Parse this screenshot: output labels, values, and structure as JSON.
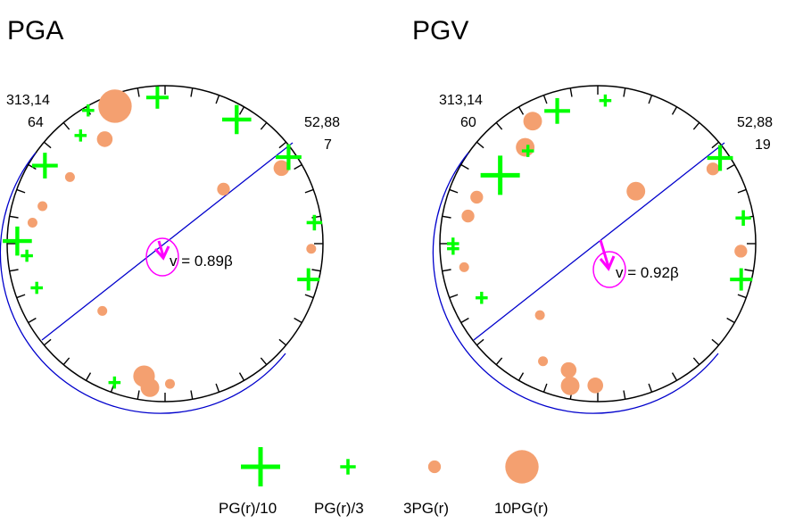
{
  "colors": {
    "plus": "#00ff00",
    "circle": "#f4a070",
    "plane": "#0000cc",
    "rupture": "#ff00ff",
    "outline": "#000000"
  },
  "panels": [
    {
      "title": "PGA",
      "strike_dip_label": "313,14",
      "left_value": "64",
      "right_axis_label": "52,88",
      "right_value": "7",
      "velocity_label": "v = 0.89β",
      "markers": [
        {
          "type": "circle",
          "az": 340,
          "r": 0.97,
          "level": 10
        },
        {
          "type": "circle",
          "az": 330,
          "r": 0.8,
          "level": 4
        },
        {
          "type": "circle",
          "az": 305,
          "r": 0.77,
          "level": 2
        },
        {
          "type": "circle",
          "az": 57,
          "r": 0.92,
          "level": 4
        },
        {
          "type": "circle",
          "az": 47,
          "r": 0.53,
          "level": 3
        },
        {
          "type": "circle",
          "az": 287,
          "r": 0.85,
          "level": 2
        },
        {
          "type": "circle",
          "az": 279,
          "r": 0.89,
          "level": 2
        },
        {
          "type": "circle",
          "az": 92,
          "r": 0.97,
          "level": 2
        },
        {
          "type": "circle",
          "az": 223,
          "r": 0.61,
          "level": 2
        },
        {
          "type": "circle",
          "az": 189,
          "r": 0.89,
          "level": 6
        },
        {
          "type": "circle",
          "az": 186,
          "r": 0.96,
          "level": 5
        },
        {
          "type": "circle",
          "az": 178,
          "r": 0.93,
          "level": 2
        },
        {
          "type": "plus",
          "az": 357,
          "r": 0.97,
          "level": 5
        },
        {
          "type": "plus",
          "az": 30,
          "r": 0.95,
          "level": 7
        },
        {
          "type": "plus",
          "az": 55,
          "r": 1.0,
          "level": 6
        },
        {
          "type": "plus",
          "az": 303,
          "r": 0.95,
          "level": 6
        },
        {
          "type": "plus",
          "az": 322,
          "r": 0.91,
          "level": 2
        },
        {
          "type": "plus",
          "az": 330,
          "r": 1.02,
          "level": 2
        },
        {
          "type": "plus",
          "az": 271,
          "r": 0.98,
          "level": 7
        },
        {
          "type": "plus",
          "az": 265,
          "r": 0.92,
          "level": 2
        },
        {
          "type": "plus",
          "az": 251,
          "r": 0.9,
          "level": 2
        },
        {
          "type": "plus",
          "az": 82,
          "r": 1.0,
          "level": 3
        },
        {
          "type": "plus",
          "az": 104,
          "r": 0.98,
          "level": 5
        },
        {
          "type": "plus",
          "az": 200,
          "r": 0.98,
          "level": 2
        }
      ]
    },
    {
      "title": "PGV",
      "strike_dip_label": "313,14",
      "left_value": "60",
      "right_axis_label": "52,88",
      "right_value": "19",
      "velocity_label": "v = 0.92β",
      "markers": [
        {
          "type": "circle",
          "az": 332,
          "r": 0.92,
          "level": 5
        },
        {
          "type": "circle",
          "az": 323,
          "r": 0.8,
          "level": 5
        },
        {
          "type": "circle",
          "az": 57,
          "r": 0.91,
          "level": 3
        },
        {
          "type": "circle",
          "az": 36,
          "r": 0.43,
          "level": 5
        },
        {
          "type": "circle",
          "az": 291,
          "r": 0.86,
          "level": 3
        },
        {
          "type": "circle",
          "az": 282,
          "r": 0.88,
          "level": 3
        },
        {
          "type": "circle",
          "az": 260,
          "r": 0.9,
          "level": 2
        },
        {
          "type": "circle",
          "az": 93,
          "r": 0.95,
          "level": 3
        },
        {
          "type": "circle",
          "az": 219,
          "r": 0.61,
          "level": 2
        },
        {
          "type": "circle",
          "az": 193,
          "r": 0.86,
          "level": 4
        },
        {
          "type": "circle",
          "az": 191,
          "r": 0.96,
          "level": 5
        },
        {
          "type": "circle",
          "az": 181,
          "r": 0.94,
          "level": 4
        },
        {
          "type": "circle",
          "az": 205,
          "r": 0.86,
          "level": 2
        },
        {
          "type": "plus",
          "az": 343,
          "r": 0.92,
          "level": 6
        },
        {
          "type": "plus",
          "az": 3,
          "r": 0.95,
          "level": 2
        },
        {
          "type": "plus",
          "az": 323,
          "r": 0.77,
          "level": 2
        },
        {
          "type": "plus",
          "az": 305,
          "r": 0.79,
          "level": 10
        },
        {
          "type": "plus",
          "az": 55,
          "r": 0.99,
          "level": 6
        },
        {
          "type": "plus",
          "az": 270,
          "r": 0.96,
          "level": 2
        },
        {
          "type": "plus",
          "az": 268,
          "r": 0.96,
          "level": 2
        },
        {
          "type": "plus",
          "az": 245,
          "r": 0.85,
          "level": 2
        },
        {
          "type": "plus",
          "az": 80,
          "r": 0.98,
          "level": 3
        },
        {
          "type": "plus",
          "az": 104,
          "r": 0.98,
          "level": 5
        }
      ]
    }
  ],
  "legend": [
    {
      "type": "plus",
      "level": 10,
      "label": "PG(r)/10"
    },
    {
      "type": "plus",
      "level": 3,
      "label": "PG(r)/3"
    },
    {
      "type": "circle",
      "level": 3,
      "label": "3PG(r)"
    },
    {
      "type": "circle",
      "level": 10,
      "label": "10PG(r)"
    }
  ]
}
